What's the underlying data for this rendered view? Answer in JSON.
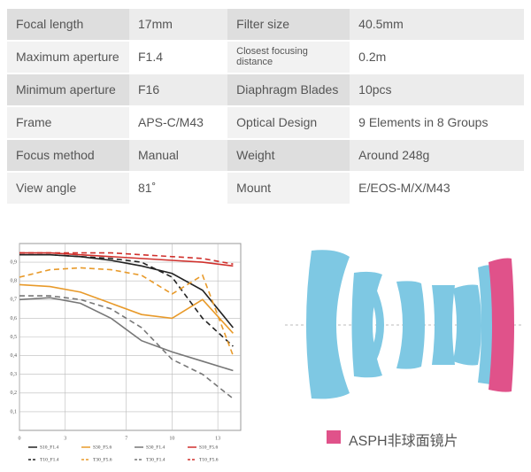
{
  "table": {
    "rows": [
      [
        "Focal length",
        "17mm",
        "Filter size",
        "40.5mm"
      ],
      [
        "Maximum aperture",
        "F1.4",
        "Closest focusing distance",
        "0.2m"
      ],
      [
        "Minimum aperture",
        "F16",
        "Diaphragm Blades",
        "10pcs"
      ],
      [
        "Frame",
        "APS-C/M43",
        "Optical Design",
        "9 Elements in 8 Groups"
      ],
      [
        "Focus method",
        "Manual",
        "Weight",
        "Around 248g"
      ],
      [
        "View angle",
        "81˚",
        "Mount",
        "E/EOS-M/X/M43"
      ]
    ]
  },
  "chart_data": {
    "type": "line",
    "x": [
      0,
      2,
      4,
      6,
      8,
      10,
      12,
      14
    ],
    "xlim": [
      0,
      14.5
    ],
    "xticks": [
      0,
      3,
      7,
      10,
      13
    ],
    "ylim": [
      0,
      1
    ],
    "yticks": [
      {
        "value": 0.9,
        "label": "0,9"
      },
      {
        "value": 0.8,
        "label": "0,8"
      },
      {
        "value": 0.7,
        "label": "0,7"
      },
      {
        "value": 0.6,
        "label": "0,6"
      },
      {
        "value": 0.5,
        "label": "0,5"
      },
      {
        "value": 0.4,
        "label": "0,4"
      },
      {
        "value": 0.3,
        "label": "0,3"
      },
      {
        "value": 0.2,
        "label": "0,2"
      },
      {
        "value": 0.1,
        "label": "0,1"
      }
    ],
    "grid": true,
    "series": [
      {
        "name": "S10_F1.4",
        "color": "#222222",
        "dashed": false,
        "values": [
          0.94,
          0.94,
          0.93,
          0.91,
          0.88,
          0.84,
          0.75,
          0.55
        ]
      },
      {
        "name": "S30_F5.6",
        "color": "#e89a2a",
        "dashed": false,
        "values": [
          0.78,
          0.77,
          0.74,
          0.68,
          0.62,
          0.6,
          0.7,
          0.52
        ]
      },
      {
        "name": "S30_F1.4",
        "color": "#777777",
        "dashed": false,
        "values": [
          0.7,
          0.71,
          0.68,
          0.6,
          0.48,
          0.42,
          0.37,
          0.32
        ]
      },
      {
        "name": "S10_F5.6",
        "color": "#d0312d",
        "dashed": false,
        "values": [
          0.95,
          0.95,
          0.94,
          0.93,
          0.92,
          0.91,
          0.9,
          0.88
        ]
      },
      {
        "name": "T10_F1.4",
        "color": "#222222",
        "dashed": true,
        "values": [
          0.94,
          0.94,
          0.93,
          0.92,
          0.9,
          0.82,
          0.6,
          0.45
        ]
      },
      {
        "name": "T30_F5.6",
        "color": "#e89a2a",
        "dashed": true,
        "values": [
          0.82,
          0.86,
          0.87,
          0.86,
          0.83,
          0.73,
          0.83,
          0.4
        ]
      },
      {
        "name": "T30_F1.4",
        "color": "#777777",
        "dashed": true,
        "values": [
          0.72,
          0.72,
          0.7,
          0.65,
          0.55,
          0.38,
          0.3,
          0.17
        ]
      },
      {
        "name": "T10_F5.6",
        "color": "#d0312d",
        "dashed": true,
        "values": [
          0.95,
          0.95,
          0.95,
          0.95,
          0.94,
          0.93,
          0.92,
          0.89
        ]
      }
    ]
  },
  "lens_legend": "ASPH非球面镜片"
}
